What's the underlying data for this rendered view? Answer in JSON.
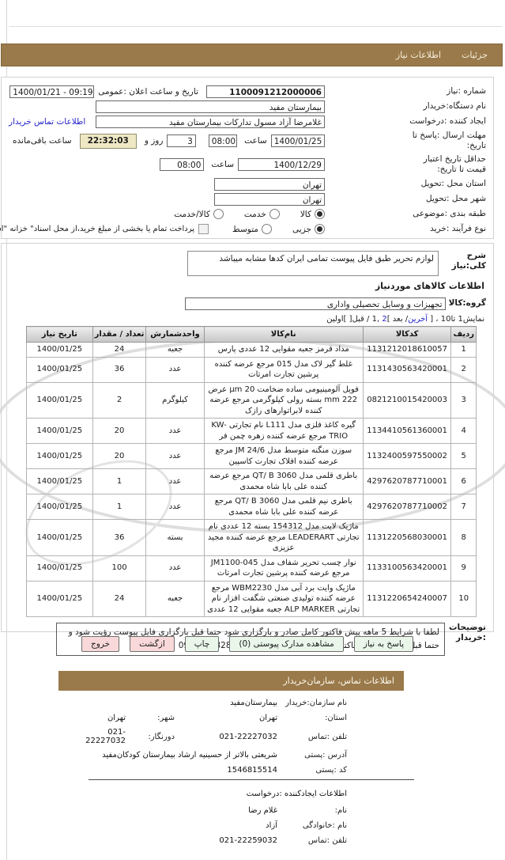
{
  "tabs": {
    "details": "جزئیات",
    "need_info": "اطلاعات نیاز"
  },
  "form": {
    "need_number_label": "شماره :نیاز",
    "need_number": "1100091212000006",
    "announce_label": "تاریخ و ساعت اعلان :عمومی",
    "announce_value": "1400/01/21 - 09:19",
    "buyer_org_label": "نام دستگاه:خریدار",
    "buyer_org": "بیمارستان مفید",
    "creator_label": "ایجاد کننده :درخواست",
    "creator_value": "غلامرضا آزاد مسول تدارکات بیمارستان مفید",
    "buyer_contact_link": "اطلاعات تماس خریدار",
    "deadline_label": "مهلت ارسال :پاسخ تا تاریخ:",
    "deadline_date": "1400/01/25",
    "hour_label": "ساعت",
    "deadline_time": "08:00",
    "days_value": "3",
    "days_label": "روز و",
    "countdown": "22:32:03",
    "remaining_label": "ساعت باقی‌مانده",
    "validity_label": "حداقل تاریخ اعتبار قیمت تا تاریخ:",
    "validity_date": "1400/12/29",
    "validity_time": "08:00",
    "province_label": "استان محل :تحویل",
    "province": "تهران",
    "city_label": "شهر محل :تحویل",
    "city": "تهران",
    "classification_label": "طبقه بندی :موضوعی",
    "class_goods": "کالا",
    "class_service": "خدمت",
    "class_both": "کالا/خدمت",
    "process_label": "نوع فرآیند :خرید",
    "process_minor": "جزیی",
    "process_medium": "متوسط",
    "treasury_note": "پرداخت تمام یا بخشی از مبلغ خرید،از محل اسناد\" خزانه \"اسلامی خواهد،بود"
  },
  "need": {
    "desc_label": "شرح کلی:نیاز",
    "desc": "لوازم تحریر طبق فایل پیوست تمامی ایران کدها مشابه میباشد",
    "items_heading": "اطلاعات کالاهای موردنیاز",
    "group_label": "گروه:کالا",
    "group_value": "تجهیزات و وسایل تحصیلی واداری"
  },
  "pager": {
    "p1": "نمایش1 تا10 ، [ ",
    "last_link": "آخرین",
    "p2": "/ بعد ]",
    "page2_link": "2",
    "p3": " ,1 / قبل[ ]اولین"
  },
  "table": {
    "headers": [
      "ردیف",
      "کدکالا",
      "نام‌کالا",
      "واحدشمارش",
      "تعداد / مقدار",
      "تاریخ نیاز"
    ],
    "rows": [
      {
        "row": "1",
        "code": "1131212018610057",
        "name": "مداد قرمز جعبه مقوایی 12 عددی پارس",
        "unit": "جعبه",
        "qty": "24",
        "date": "1400/01/25"
      },
      {
        "row": "2",
        "code": "1131430563420001",
        "name": "غلط گیر لاک مدل 015 مرجع عرضه کننده پرشین تجارت امرتات",
        "unit": "عدد",
        "qty": "36",
        "date": "1400/01/25"
      },
      {
        "row": "3",
        "code": "0821210015420003",
        "name": "فویل آلومینیومی ساده ضخامت 20 µm عرض 222 mm بسته رولی کیلوگرمی مرجع عرضه کننده لابراتوارهای رازک",
        "unit": "کیلوگرم",
        "qty": "2",
        "date": "1400/01/25"
      },
      {
        "row": "4",
        "code": "1134410561360001",
        "name": "گیره کاغذ فلزی مدل L111 نام تجارتی KW-TRIO مرجع عرضه کننده زهره چمن فر",
        "unit": "عدد",
        "qty": "20",
        "date": "1400/01/25"
      },
      {
        "row": "5",
        "code": "1132400597550002",
        "name": "سوزن منگنه متوسط مدل JM 24/6 مرجع عرضه کننده افلاک تجارت کاسپین",
        "unit": "عدد",
        "qty": "20",
        "date": "1400/01/25"
      },
      {
        "row": "6",
        "code": "4297620787710001",
        "name": "باطری قلمی مدل QT/ B 3060 مرجع عرضه کننده علی بابا شاه محمدی",
        "unit": "عدد",
        "qty": "1",
        "date": "1400/01/25"
      },
      {
        "row": "7",
        "code": "4297620787710002",
        "name": "باطری نیم قلمی مدل QT/ B 3060 مرجع عرضه کننده علی بابا شاه محمدی",
        "unit": "عدد",
        "qty": "1",
        "date": "1400/01/25"
      },
      {
        "row": "8",
        "code": "1131220568030001",
        "name": "ماژیک لایت مدل 154312 بسته 12 عددی نام تجارتی LEADERART مرجع عرضه کننده مجید عزیزی",
        "unit": "بسته",
        "qty": "36",
        "date": "1400/01/25"
      },
      {
        "row": "9",
        "code": "1133100563420001",
        "name": "نوار چسب تحریر شفاف مدل JM1100-045 مرجع عرضه کننده پرشین تجارت امرتات",
        "unit": "عدد",
        "qty": "100",
        "date": "1400/01/25"
      },
      {
        "row": "10",
        "code": "1131220654240007",
        "name": "ماژیک وایت برد آبی مدل WBM2230 مرجع عرضه کننده تولیدی صنعتی شگفت افزار نام تجارتی ALP MARKER جعبه مقوایی 12 عددی",
        "unit": "جعبه",
        "qty": "24",
        "date": "1400/01/25"
      }
    ]
  },
  "remarks": {
    "label": "توضیحات :خریدار",
    "text": "لطفا با شرایط 5 ماهه پیش فاکتور کامل صادر و بارگزاری شود حتما قبل بارگزاری فایل پیوست رؤیت شود و حتما قبل از صدور پیش فاکتور با آقای امینی تماس گرفشود09122483284"
  },
  "buttons": {
    "reply": "پاسخ به نیاز",
    "docs": "مشاهده مدارک پیوستی (0)",
    "print": "چاپ",
    "back": "ازگشت",
    "exit": "خروج"
  },
  "org_contact": {
    "heading": "اطلاعات تماس، سازمان‌خریدار",
    "org_label": "نام سازمان:خریدار",
    "org_value": "بیمارستان‌مفید",
    "province_label": "استان:",
    "province": "تهران",
    "city_label": "شهر:",
    "city": "تهران",
    "phone_label": "تلفن :تماس",
    "phone": "021-22227032",
    "fax_label": "دورنگار:",
    "fax": "021-22227032",
    "address_label": "آدرس :پستی",
    "address": "شریعتی بالاتر از حسینیه ارشاد بیمارستان کودکان‌مفید",
    "postal_label": "کد :پستی",
    "postal": "1546815514"
  },
  "creator_info": {
    "heading": "اطلاعات ایجادکننده :درخواست",
    "first_name_label": "نام:",
    "first_name": "غلام رضا",
    "last_name_label": "نام :خانوادگی",
    "last_name": "آزاد",
    "phone_label": "تلفن :تماس",
    "phone": "021-22259032"
  },
  "colors": {
    "accent_brown": "#9a7a4b",
    "link_blue": "#2323c8",
    "button_green": "#e9f6e9",
    "button_pink": "#f8d8d8",
    "countdown_bg": "#eee8c4"
  }
}
